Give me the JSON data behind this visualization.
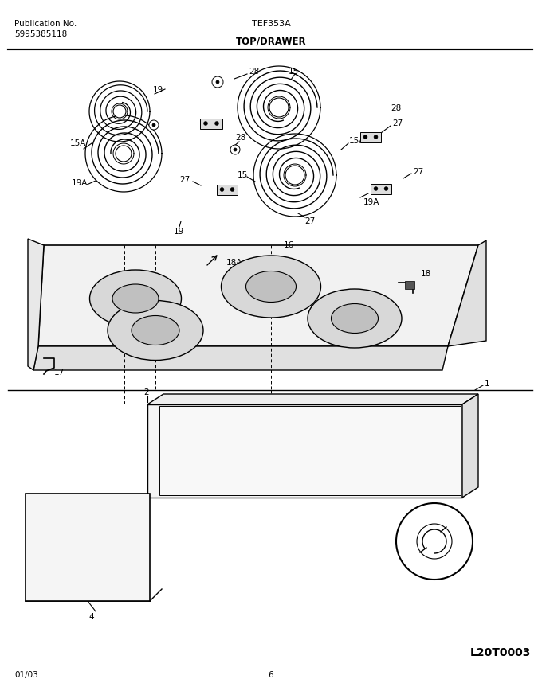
{
  "title": "TEF353A",
  "subtitle": "TOP/DRAWER",
  "pub_no": "Publication No.",
  "pub_num": "5995385118",
  "date": "01/03",
  "page": "6",
  "logo": "L20T0003",
  "bg_color": "#ffffff",
  "line_color": "#000000"
}
